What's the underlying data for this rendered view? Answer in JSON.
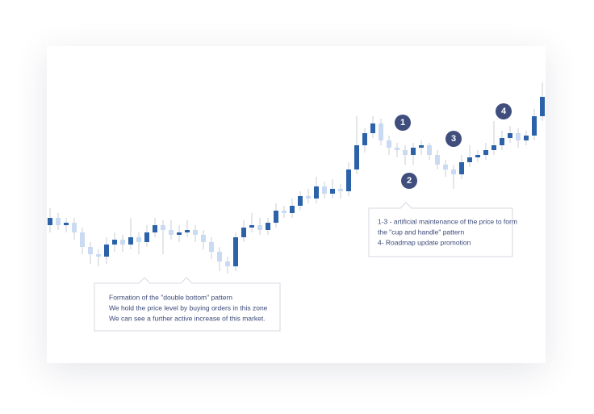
{
  "chart_data": {
    "type": "candlestick",
    "up_color": "#2c62a8",
    "down_color": "#c9daf2",
    "wick_color": "#c8ccd2",
    "ylim": [
      0,
      110
    ],
    "ohlc": [
      [
        47,
        54,
        44,
        50
      ],
      [
        50,
        52,
        45,
        47
      ],
      [
        47,
        50,
        44,
        48
      ],
      [
        48,
        50,
        41,
        44
      ],
      [
        44,
        46,
        35,
        38
      ],
      [
        38,
        40,
        31,
        35
      ],
      [
        35,
        37,
        30,
        34
      ],
      [
        34,
        42,
        31,
        39
      ],
      [
        39,
        44,
        36,
        41
      ],
      [
        41,
        43,
        36,
        39
      ],
      [
        39,
        50,
        37,
        42
      ],
      [
        42,
        44,
        35,
        40
      ],
      [
        40,
        47,
        38,
        44
      ],
      [
        44,
        50,
        42,
        47
      ],
      [
        47,
        49,
        35,
        45
      ],
      [
        45,
        49,
        41,
        43
      ],
      [
        43,
        47,
        40,
        44
      ],
      [
        44,
        49,
        42,
        45
      ],
      [
        45,
        47,
        40,
        43
      ],
      [
        43,
        45,
        37,
        40
      ],
      [
        40,
        42,
        33,
        36
      ],
      [
        36,
        38,
        28,
        32
      ],
      [
        32,
        34,
        27,
        30
      ],
      [
        30,
        44,
        28,
        42
      ],
      [
        42,
        49,
        40,
        46
      ],
      [
        46,
        52,
        44,
        47
      ],
      [
        47,
        50,
        43,
        45
      ],
      [
        45,
        50,
        43,
        48
      ],
      [
        48,
        56,
        46,
        53
      ],
      [
        53,
        55,
        50,
        52
      ],
      [
        52,
        58,
        50,
        55
      ],
      [
        55,
        61,
        53,
        59
      ],
      [
        59,
        62,
        56,
        58
      ],
      [
        58,
        67,
        56,
        63
      ],
      [
        63,
        65,
        58,
        60
      ],
      [
        60,
        66,
        58,
        62
      ],
      [
        62,
        64,
        58,
        61
      ],
      [
        61,
        73,
        59,
        70
      ],
      [
        70,
        92,
        68,
        80
      ],
      [
        80,
        87,
        77,
        85
      ],
      [
        85,
        92,
        83,
        89
      ],
      [
        89,
        91,
        80,
        82
      ],
      [
        82,
        84,
        76,
        79
      ],
      [
        79,
        81,
        75,
        78
      ],
      [
        78,
        80,
        72,
        76
      ],
      [
        76,
        81,
        72,
        79
      ],
      [
        79,
        82,
        76,
        80
      ],
      [
        80,
        81,
        74,
        76
      ],
      [
        76,
        78,
        70,
        72
      ],
      [
        72,
        74,
        67,
        70
      ],
      [
        70,
        72,
        62,
        68
      ],
      [
        68,
        76,
        66,
        73
      ],
      [
        73,
        80,
        71,
        75
      ],
      [
        75,
        78,
        73,
        76
      ],
      [
        76,
        81,
        74,
        78
      ],
      [
        78,
        90,
        76,
        80
      ],
      [
        80,
        86,
        78,
        83
      ],
      [
        83,
        88,
        81,
        85
      ],
      [
        85,
        87,
        79,
        82
      ],
      [
        82,
        86,
        80,
        84
      ],
      [
        84,
        95,
        82,
        92
      ],
      [
        92,
        106,
        90,
        100
      ]
    ],
    "markers": [
      "1",
      "2",
      "3",
      "4"
    ],
    "callouts": [
      {
        "lines": [
          "Formation of the \"double bottom\" pattern",
          "We hold the price level by buying orders in this zone",
          "We can see a further active increase of this market."
        ]
      },
      {
        "lines": [
          "1-3 - artificial maintenance of the price to form",
          "the \"cup and handle\" pattern",
          "4- Roadmap update promotion"
        ]
      }
    ]
  }
}
